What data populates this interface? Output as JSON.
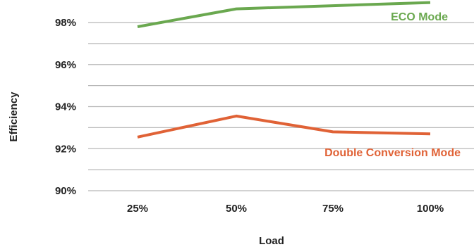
{
  "chart_data": {
    "type": "line",
    "title": "",
    "xlabel": "Load",
    "ylabel": "Efficiency",
    "categories": [
      "25%",
      "50%",
      "75%",
      "100%"
    ],
    "ylim": [
      90,
      99
    ],
    "yticks": [
      90,
      92,
      94,
      96,
      98
    ],
    "ytick_labels": [
      "90%",
      "92%",
      "94%",
      "96%",
      "98%"
    ],
    "grid": true,
    "series": [
      {
        "name": "ECO Mode",
        "values": [
          97.8,
          98.65,
          98.8,
          98.95
        ],
        "color": "#6aa84f"
      },
      {
        "name": "Double Conversion Mode",
        "values": [
          92.55,
          93.55,
          92.8,
          92.7
        ],
        "color": "#e06236"
      }
    ]
  }
}
